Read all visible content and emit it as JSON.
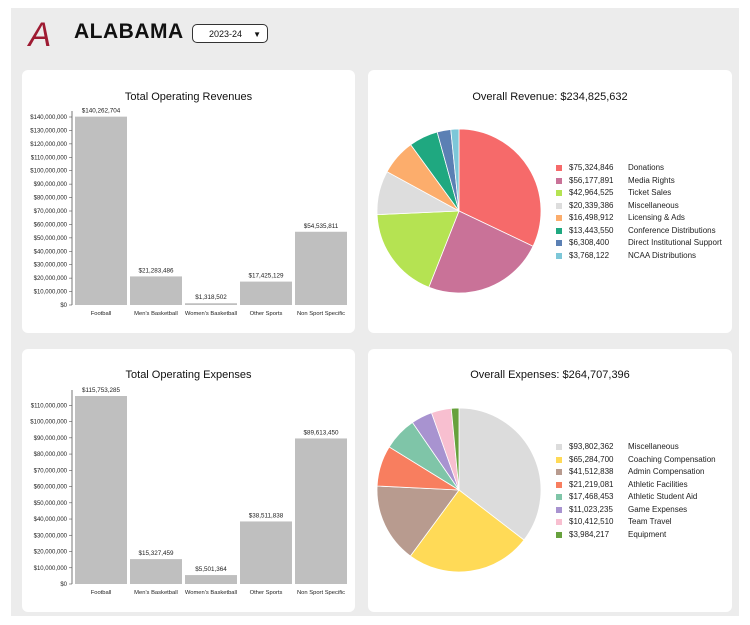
{
  "header": {
    "logo_letter": "A",
    "brand": "ALABAMA",
    "season": "2023-24",
    "logo_color": "#9e1b32"
  },
  "chart_data": [
    {
      "type": "bar",
      "title": "Total Operating Revenues",
      "categories": [
        "Football",
        "Men's Basketball",
        "Women's Basketball",
        "Other Sports",
        "Non Sport Specific"
      ],
      "values": [
        140262704,
        21283486,
        1318502,
        17425129,
        54535811
      ],
      "value_labels": [
        "$140,262,704",
        "$21,283,486",
        "$1,318,502",
        "$17,425,129",
        "$54,535,811"
      ],
      "y_ticks": [
        "$0",
        "$10,000,000",
        "$20,000,000",
        "$30,000,000",
        "$40,000,000",
        "$50,000,000",
        "$60,000,000",
        "$70,000,000",
        "$80,000,000",
        "$90,000,000",
        "$100,000,000",
        "$110,000,000",
        "$120,000,000",
        "$130,000,000",
        "$140,000,000"
      ],
      "ylim": [
        0,
        140000000
      ],
      "bar_color": "#bfbfbf"
    },
    {
      "type": "pie",
      "title": "Overall Revenue: $234,825,632",
      "slices": [
        {
          "amount": "$75,324,846",
          "label": "Donations",
          "value": 75324846,
          "color": "#f66a6a"
        },
        {
          "amount": "$56,177,891",
          "label": "Media Rights",
          "value": 56177891,
          "color": "#c97298"
        },
        {
          "amount": "$42,964,525",
          "label": "Ticket Sales",
          "value": 42964525,
          "color": "#b5e352"
        },
        {
          "amount": "$20,339,386",
          "label": "Miscellaneous",
          "value": 20339386,
          "color": "#dddddd"
        },
        {
          "amount": "$16,498,912",
          "label": "Licensing & Ads",
          "value": 16498912,
          "color": "#fcad6c"
        },
        {
          "amount": "$13,443,550",
          "label": "Conference Distributions",
          "value": 13443550,
          "color": "#1fa880"
        },
        {
          "amount": "$6,308,400",
          "label": "Direct Institutional Support",
          "value": 6308400,
          "color": "#5b80b4"
        },
        {
          "amount": "$3,768,122",
          "label": "NCAA Distributions",
          "value": 3768122,
          "color": "#7dc7d8"
        }
      ]
    },
    {
      "type": "bar",
      "title": "Total Operating Expenses",
      "categories": [
        "Football",
        "Men's Basketball",
        "Women's Basketball",
        "Other Sports",
        "Non Sport Specific"
      ],
      "values": [
        115753285,
        15327459,
        5501364,
        38511838,
        89613450
      ],
      "value_labels": [
        "$115,753,285",
        "$15,327,459",
        "$5,501,364",
        "$38,511,838",
        "$89,613,450"
      ],
      "y_ticks": [
        "$0",
        "$10,000,000",
        "$20,000,000",
        "$30,000,000",
        "$40,000,000",
        "$50,000,000",
        "$60,000,000",
        "$70,000,000",
        "$80,000,000",
        "$90,000,000",
        "$100,000,000",
        "$110,000,000"
      ],
      "ylim": [
        0,
        115753285
      ],
      "bar_color": "#bfbfbf"
    },
    {
      "type": "pie",
      "title": "Overall Expenses: $264,707,396",
      "slices": [
        {
          "amount": "$93,802,362",
          "label": "Miscellaneous",
          "value": 93802362,
          "color": "#dcdcdc"
        },
        {
          "amount": "$65,284,700",
          "label": "Coaching Compensation",
          "value": 65284700,
          "color": "#ffda57"
        },
        {
          "amount": "$41,512,838",
          "label": "Admin Compensation",
          "value": 41512838,
          "color": "#b89b8f"
        },
        {
          "amount": "$21,219,081",
          "label": "Athletic Facilities",
          "value": 21219081,
          "color": "#f87e5f"
        },
        {
          "amount": "$17,468,453",
          "label": "Athletic Student Aid",
          "value": 17468453,
          "color": "#7fc5a8"
        },
        {
          "amount": "$11,023,235",
          "label": "Game Expenses",
          "value": 11023235,
          "color": "#a893d0"
        },
        {
          "amount": "$10,412,510",
          "label": "Team Travel",
          "value": 10412510,
          "color": "#f8bfd0"
        },
        {
          "amount": "$3,984,217",
          "label": "Equipment",
          "value": 3984217,
          "color": "#67a13d"
        }
      ]
    }
  ]
}
